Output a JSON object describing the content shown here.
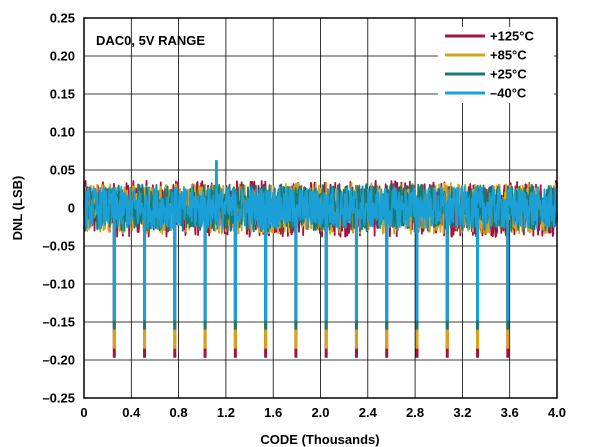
{
  "chart_data": {
    "type": "line",
    "title": "",
    "annotation": "DAC0, 5V RANGE",
    "xlabel": "CODE (Thousands)",
    "ylabel": "DNL (LSB)",
    "xlim": [
      0,
      4.0
    ],
    "ylim": [
      -0.25,
      0.25
    ],
    "x_ticks": [
      0,
      0.4,
      0.8,
      1.2,
      1.6,
      2.0,
      2.4,
      2.8,
      3.2,
      3.6,
      4.0
    ],
    "x_tick_labels": [
      "0",
      "0.4",
      "0.8",
      "1.2",
      "1.6",
      "2.0",
      "2.4",
      "2.8",
      "3.2",
      "3.6",
      "4.0"
    ],
    "y_ticks": [
      0.25,
      0.2,
      0.15,
      0.1,
      0.05,
      0,
      -0.05,
      -0.1,
      -0.15,
      -0.2,
      -0.25
    ],
    "y_tick_labels": [
      "0.25",
      "0.20",
      "0.15",
      "0.10",
      "0.05",
      "0",
      "–0.05",
      "–0.10",
      "–0.15",
      "–0.20",
      "–0.25"
    ],
    "grid": true,
    "legend_position": "top-right",
    "spike_codes": [
      0.256,
      0.512,
      0.768,
      1.024,
      1.28,
      1.536,
      1.792,
      2.048,
      2.304,
      2.56,
      2.816,
      3.072,
      3.328,
      3.584
    ],
    "positive_spike": {
      "x": 1.12,
      "y": 0.063
    },
    "series": [
      {
        "name": "+125°C",
        "color": "#a4123f",
        "band": [
          -0.038,
          0.036
        ],
        "spike_min": -0.197
      },
      {
        "name": "+85°C",
        "color": "#d9a21b",
        "band": [
          -0.034,
          0.033
        ],
        "spike_min": -0.185
      },
      {
        "name": "+25°C",
        "color": "#197a73",
        "band": [
          -0.031,
          0.031
        ],
        "spike_min": -0.16
      },
      {
        "name": "–40°C",
        "color": "#1aa0d6",
        "band": [
          -0.028,
          0.028
        ],
        "spike_min": -0.148
      }
    ]
  }
}
